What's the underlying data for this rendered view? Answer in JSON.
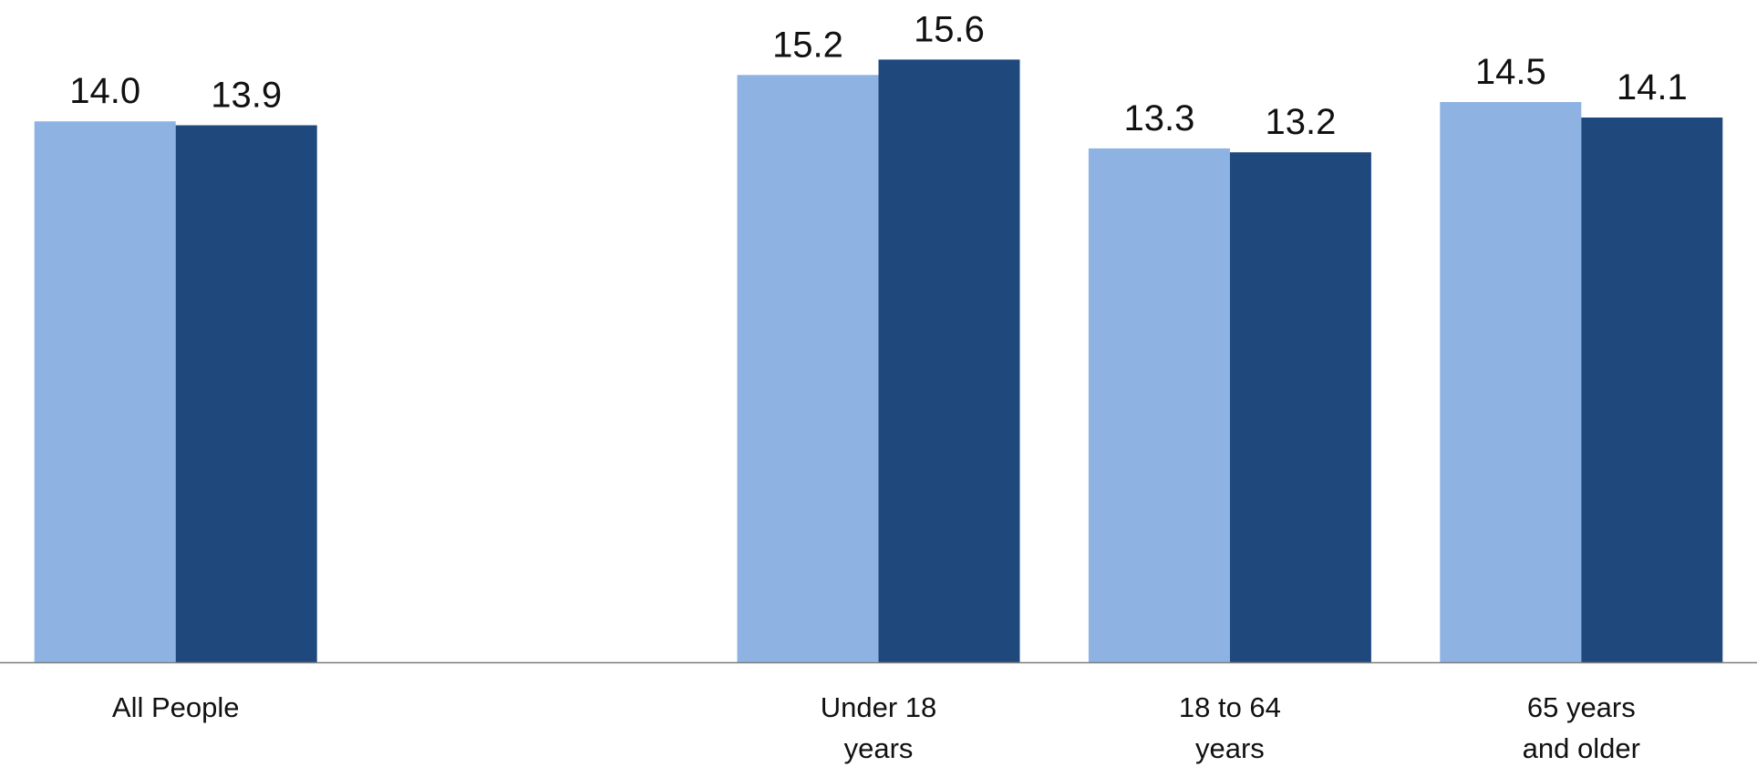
{
  "chart_data": {
    "type": "bar",
    "title": "",
    "xlabel": "",
    "ylabel": "",
    "categories": [
      {
        "key": "all",
        "lines": [
          "All People"
        ]
      },
      {
        "key": "empty",
        "lines": []
      },
      {
        "key": "under18",
        "lines": [
          "Under 18",
          "years"
        ]
      },
      {
        "key": "18to64",
        "lines": [
          "18 to 64",
          "years"
        ]
      },
      {
        "key": "65plus",
        "lines": [
          "65 years",
          "and older"
        ]
      }
    ],
    "series": [
      {
        "color": "#8eb3e2",
        "values": [
          14.0,
          null,
          15.2,
          13.3,
          14.5
        ],
        "labels": [
          "14.0",
          "",
          "15.2",
          "13.3",
          "14.5"
        ]
      },
      {
        "color": "#1f497d",
        "values": [
          13.9,
          null,
          15.6,
          13.2,
          14.1
        ],
        "labels": [
          "13.9",
          "",
          "15.6",
          "13.2",
          "14.1"
        ]
      }
    ],
    "ylim": [
      0,
      17
    ],
    "grid": false,
    "legend": "none",
    "axis_color": "#7f7f7f"
  }
}
